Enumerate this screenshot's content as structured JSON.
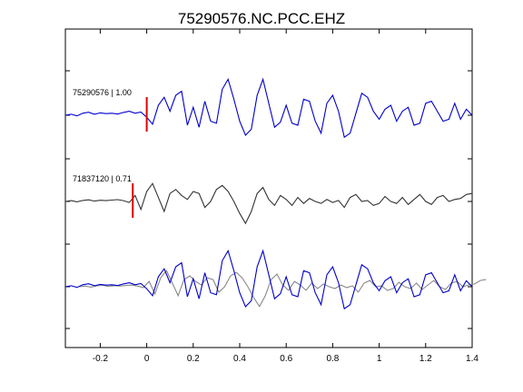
{
  "chart_data": {
    "type": "line",
    "title": "75290576.NC.PCC.EHZ",
    "xlabel": "",
    "ylabel": "",
    "xlim": [
      -0.35,
      1.4
    ],
    "x_ticks": [
      -0.2,
      0,
      0.2,
      0.4,
      0.6,
      0.8,
      1,
      1.2,
      1.4
    ],
    "x_tick_labels": [
      "-0.2",
      "0",
      "0.2",
      "0.4",
      "0.6",
      "0.8",
      "1",
      "1.2",
      "1.4"
    ],
    "grid": false,
    "sample_step": 0.025,
    "traces": [
      {
        "label": "75290576 | 1.00",
        "color": "#0000cc",
        "pick_time": 0.0,
        "x_start": -0.35,
        "values": [
          0,
          0.05,
          -0.03,
          0.1,
          0.15,
          0.05,
          0.12,
          0.08,
          0.1,
          0.06,
          0.14,
          0.2,
          0.1,
          0.16,
          -0.1,
          -0.45,
          0.5,
          0.9,
          0.2,
          1.0,
          1.2,
          -0.5,
          0.4,
          -0.6,
          0.7,
          -0.3,
          -0.4,
          1.3,
          1.8,
          0.8,
          -0.3,
          -1.0,
          -0.7,
          1.0,
          1.8,
          0.6,
          -0.6,
          -0.35,
          0.5,
          -0.4,
          -0.5,
          0.8,
          0.7,
          -0.3,
          -0.9,
          0.6,
          1.0,
          0.2,
          -1.1,
          -0.9,
          0.1,
          1.1,
          0.9,
          0.2,
          -0.2,
          0.3,
          0.5,
          -0.3,
          0.2,
          0.4,
          -0.5,
          -0.4,
          0.6,
          0.7,
          0.2,
          -0.3,
          -0.2,
          0.6,
          -0.2,
          0.3,
          0.0
        ]
      },
      {
        "label": "71837120 | 0.71",
        "color": "#333333",
        "pick_time": -0.06,
        "x_start": -0.35,
        "values": [
          0,
          0.04,
          -0.02,
          0.05,
          0.08,
          0.02,
          0.06,
          0.04,
          0.07,
          0.09,
          0.04,
          -0.05,
          0.3,
          -0.4,
          0.5,
          0.9,
          0.2,
          -0.5,
          0.4,
          0.6,
          0.3,
          0.1,
          0.5,
          0.4,
          -0.3,
          0.0,
          0.6,
          0.8,
          0.5,
          0.0,
          -0.6,
          -1.1,
          -0.5,
          0.4,
          0.7,
          0.1,
          -0.2,
          0.3,
          0.1,
          -0.2,
          0.2,
          -0.1,
          0.15,
          0.0,
          -0.1,
          0.1,
          -0.05,
          0.05,
          -0.3,
          0.2,
          0.35,
          0.0,
          0.05,
          -0.2,
          -0.1,
          0.25,
          0.0,
          -0.1,
          0.2,
          -0.15,
          0.1,
          0.35,
          0.0,
          -0.15,
          0.2,
          0.3,
          0.0,
          0.1,
          0.15,
          0.35,
          0.4
        ]
      }
    ],
    "overlay": {
      "description": "both traces superimposed, aligned on pick",
      "colors": [
        "#0000cc",
        "#888888"
      ]
    },
    "pick_color": "#dd0000"
  }
}
